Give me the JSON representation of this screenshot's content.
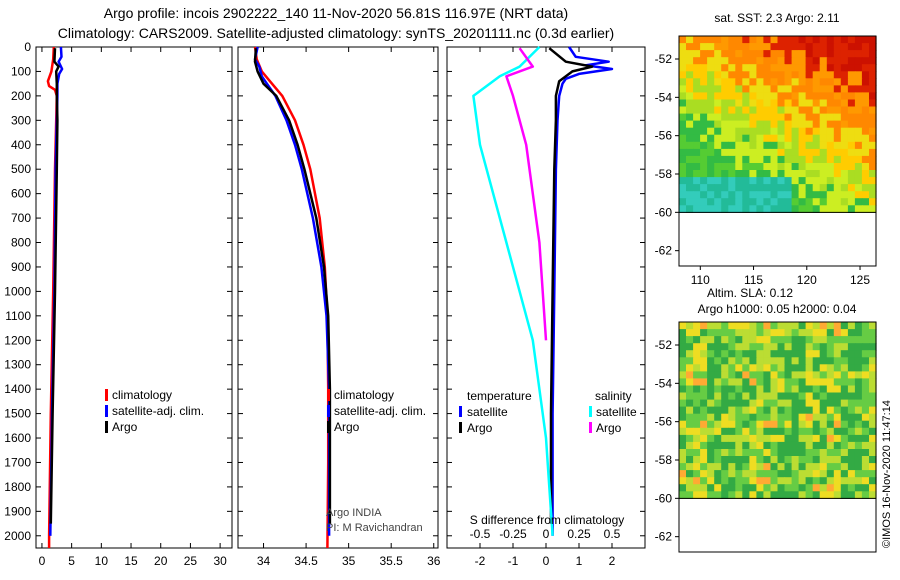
{
  "header": {
    "title_line1": "Argo profile: incois 2902222_140 11-Nov-2020 56.81S 116.97E (NRT data)",
    "title_line2": "Climatology: CARS2009. Satellite-adjusted climatology: synTS_20201111.nc (0.3d earlier)"
  },
  "colors": {
    "climatology": "#ff0000",
    "satellite": "#0000ff",
    "argo": "#000000",
    "sat_salinity": "#00ffff",
    "argo_salinity": "#ff00ff"
  },
  "chart_data": [
    {
      "type": "line",
      "panel": "temperature",
      "ylabel": "depth",
      "ylim": [
        2050,
        0
      ],
      "yticks": [
        0,
        100,
        200,
        300,
        400,
        500,
        600,
        700,
        800,
        900,
        1000,
        1100,
        1200,
        1300,
        1400,
        1500,
        1600,
        1700,
        1800,
        1900,
        2000
      ],
      "xlim": [
        -1,
        32
      ],
      "xticks": [
        0,
        5,
        10,
        15,
        20,
        25,
        30
      ],
      "legend": [
        "climatology",
        "satellite-adj. clim.",
        "Argo"
      ],
      "series": [
        {
          "name": "climatology",
          "depth": [
            0,
            50,
            100,
            140,
            160,
            175,
            200,
            300,
            500,
            1000,
            1500,
            2000,
            2050
          ],
          "values": [
            2.0,
            1.9,
            1.6,
            1.0,
            1.2,
            2.2,
            2.5,
            2.4,
            2.2,
            1.9,
            1.5,
            1.2,
            1.2
          ]
        },
        {
          "name": "satellite-adj. clim.",
          "depth": [
            0,
            40,
            60,
            90,
            110,
            150,
            200,
            300,
            500,
            1000,
            1500,
            2000
          ],
          "values": [
            3.2,
            3.3,
            2.8,
            3.4,
            2.9,
            2.6,
            2.6,
            2.5,
            2.3,
            2.1,
            1.7,
            1.4
          ]
        },
        {
          "name": "Argo",
          "depth": [
            5,
            60,
            80,
            100,
            150,
            200,
            300,
            500,
            1000,
            1500,
            1950
          ],
          "values": [
            2.2,
            2.1,
            2.8,
            2.4,
            2.5,
            2.5,
            2.6,
            2.5,
            2.2,
            1.8,
            1.5
          ]
        }
      ]
    },
    {
      "type": "line",
      "panel": "salinity",
      "ylim": [
        2050,
        0
      ],
      "xlim": [
        33.7,
        36.05
      ],
      "xticks": [
        34,
        34.5,
        35,
        35.5,
        36
      ],
      "legend": [
        "climatology",
        "satellite-adj. clim.",
        "Argo"
      ],
      "series": [
        {
          "name": "climatology",
          "depth": [
            0,
            50,
            100,
            150,
            200,
            300,
            400,
            500,
            700,
            900,
            1100,
            1400,
            1700,
            2050
          ],
          "values": [
            33.9,
            33.92,
            33.98,
            34.1,
            34.22,
            34.37,
            34.47,
            34.55,
            34.66,
            34.72,
            34.75,
            34.76,
            34.76,
            34.75
          ]
        },
        {
          "name": "satellite-adj. clim.",
          "depth": [
            0,
            50,
            80,
            120,
            150,
            200,
            300,
            400,
            500,
            700,
            900,
            1100,
            1400,
            1700,
            2000
          ],
          "values": [
            33.93,
            33.9,
            33.95,
            33.98,
            34.04,
            34.14,
            34.27,
            34.37,
            34.45,
            34.58,
            34.68,
            34.74,
            34.77,
            34.77,
            34.77
          ]
        },
        {
          "name": "Argo",
          "depth": [
            5,
            60,
            100,
            150,
            200,
            300,
            400,
            500,
            700,
            900,
            1100,
            1400,
            1700,
            1950
          ],
          "values": [
            33.91,
            33.9,
            33.93,
            34.0,
            34.15,
            34.3,
            34.4,
            34.48,
            34.62,
            34.71,
            34.76,
            34.78,
            34.78,
            34.78
          ]
        }
      ],
      "annotation": [
        "Argo INDIA",
        "PI: M Ravichandran"
      ]
    },
    {
      "type": "line",
      "panel": "difference",
      "xlabel": "S difference from climatology",
      "ylim": [
        2050,
        0
      ],
      "xlim": [
        -3,
        3
      ],
      "xticks": [
        -2,
        -1,
        0,
        1,
        2
      ],
      "xticks_salinity": [
        -0.5,
        -0.25,
        0,
        0.25,
        0.5
      ],
      "legend_temperature_title": "temperature",
      "legend_salinity_title": "salinity",
      "legend_items": [
        "satellite",
        "Argo",
        "satellite",
        "Argo"
      ],
      "series": [
        {
          "name": "temperature satellite",
          "depth": [
            0,
            40,
            60,
            75,
            90,
            110,
            130,
            150,
            200,
            300,
            500,
            1000,
            1500,
            2000
          ],
          "values": [
            0.7,
            0.9,
            1.9,
            1.2,
            2.0,
            1.0,
            0.6,
            0.5,
            0.4,
            0.35,
            0.3,
            0.25,
            0.2,
            0.2
          ]
        },
        {
          "name": "temperature Argo",
          "depth": [
            5,
            60,
            80,
            100,
            140,
            200,
            300,
            500,
            1000,
            1500,
            1950
          ],
          "values": [
            0.1,
            0.6,
            1.4,
            0.8,
            0.4,
            0.3,
            0.3,
            0.25,
            0.2,
            0.15,
            0.15
          ]
        },
        {
          "name": "salinity satellite",
          "depth": [
            0,
            80,
            120,
            200,
            400,
            800,
            1200,
            1600,
            2000
          ],
          "values": [
            -0.05,
            -0.2,
            -0.35,
            -0.55,
            -0.5,
            -0.3,
            -0.1,
            0.0,
            0.05
          ]
        },
        {
          "name": "salinity Argo",
          "depth": [
            5,
            80,
            120,
            200,
            400,
            800,
            1200
          ],
          "values": [
            -0.2,
            -0.1,
            -0.3,
            -0.25,
            -0.15,
            -0.05,
            0.0
          ]
        }
      ]
    }
  ],
  "maps": {
    "sst": {
      "title": "sat. SST: 2.3 Argo: 2.11",
      "xticks": [
        110,
        115,
        120,
        125
      ],
      "yticks": [
        -52,
        -54,
        -56,
        -58,
        -60,
        -62
      ],
      "lon_range": [
        108,
        126.5
      ],
      "lat_range": [
        -62.8,
        -50.8
      ],
      "data_lat_min": -60
    },
    "sla": {
      "title_line1": "Altim. SLA: 0.12",
      "title_line2": "Argo h1000: 0.05 h2000: 0.04",
      "yticks": [
        -52,
        -54,
        -56,
        -58,
        -60,
        -62
      ],
      "lat_range": [
        -62.8,
        -50.8
      ],
      "data_lat_min": -60
    }
  },
  "footer": {
    "credit": "©IMOS 16-Nov-2020 11:47:14"
  }
}
